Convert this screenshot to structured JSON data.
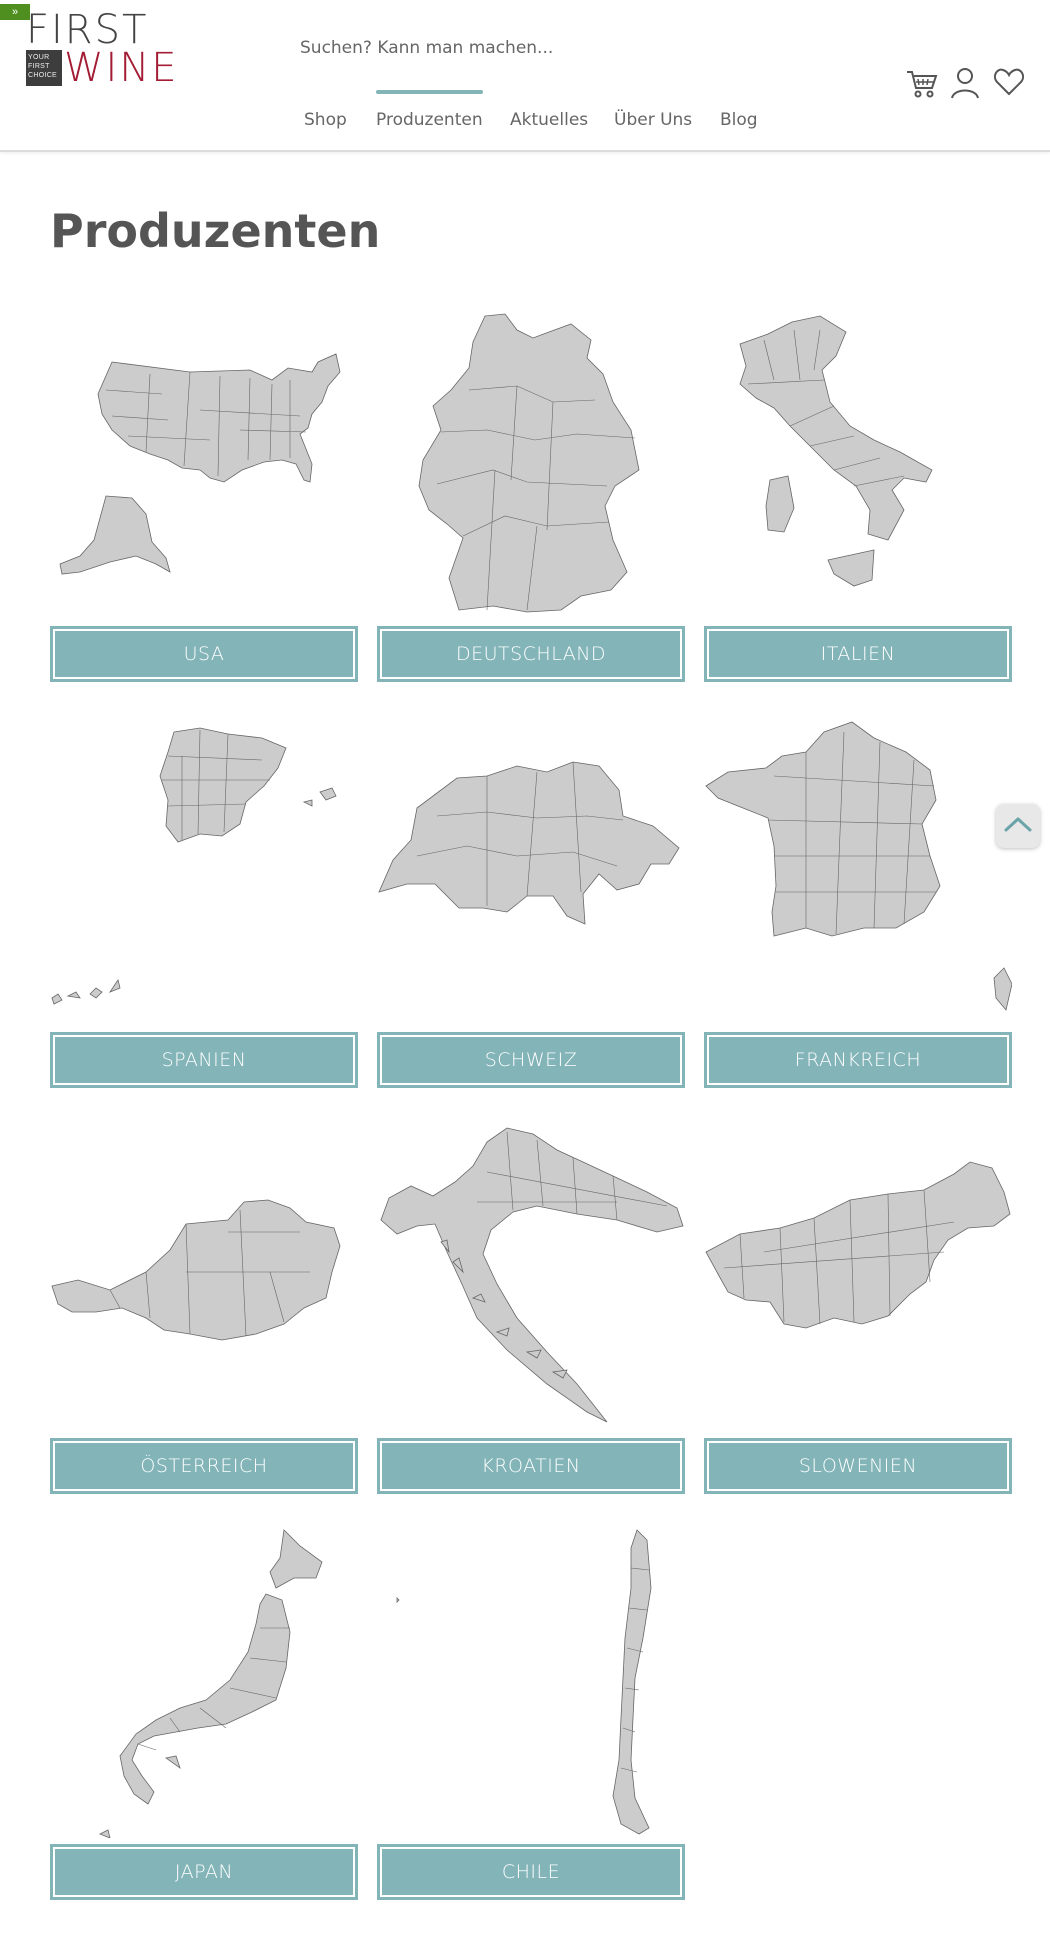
{
  "header": {
    "toggle_label": "»",
    "logo": {
      "first": "FIRST",
      "wine": "WINE",
      "tagline": [
        "YOUR",
        "FIRST",
        "CHOICE"
      ]
    },
    "search": {
      "placeholder": "Suchen? Kann man machen..."
    },
    "icons": [
      "cart-icon",
      "user-icon",
      "heart-icon"
    ],
    "nav": [
      {
        "label": "Shop",
        "active": false
      },
      {
        "label": "Produzenten",
        "active": true
      },
      {
        "label": "Aktuelles",
        "active": false
      },
      {
        "label": "Über Uns",
        "active": false
      },
      {
        "label": "Blog",
        "active": false
      }
    ],
    "accent_color": "#82b4b8",
    "logo_wine_color": "#a31c34"
  },
  "page": {
    "title": "Produzenten",
    "countries": [
      {
        "label": "USA",
        "map": "usa-map"
      },
      {
        "label": "DEUTSCHLAND",
        "map": "germany-map"
      },
      {
        "label": "ITALIEN",
        "map": "italy-map"
      },
      {
        "label": "SPANIEN",
        "map": "spain-map"
      },
      {
        "label": "SCHWEIZ",
        "map": "switzerland-map"
      },
      {
        "label": "FRANKREICH",
        "map": "france-map"
      },
      {
        "label": "ÖSTERREICH",
        "map": "austria-map"
      },
      {
        "label": "KROATIEN",
        "map": "croatia-map"
      },
      {
        "label": "SLOWENIEN",
        "map": "slovenia-map"
      },
      {
        "label": "JAPAN",
        "map": "japan-map"
      },
      {
        "label": "CHILE",
        "map": "chile-map"
      }
    ],
    "map_fill": "#cccccc",
    "map_stroke": "#666666"
  },
  "scroll_top": {
    "icon": "chevron-up-icon"
  }
}
